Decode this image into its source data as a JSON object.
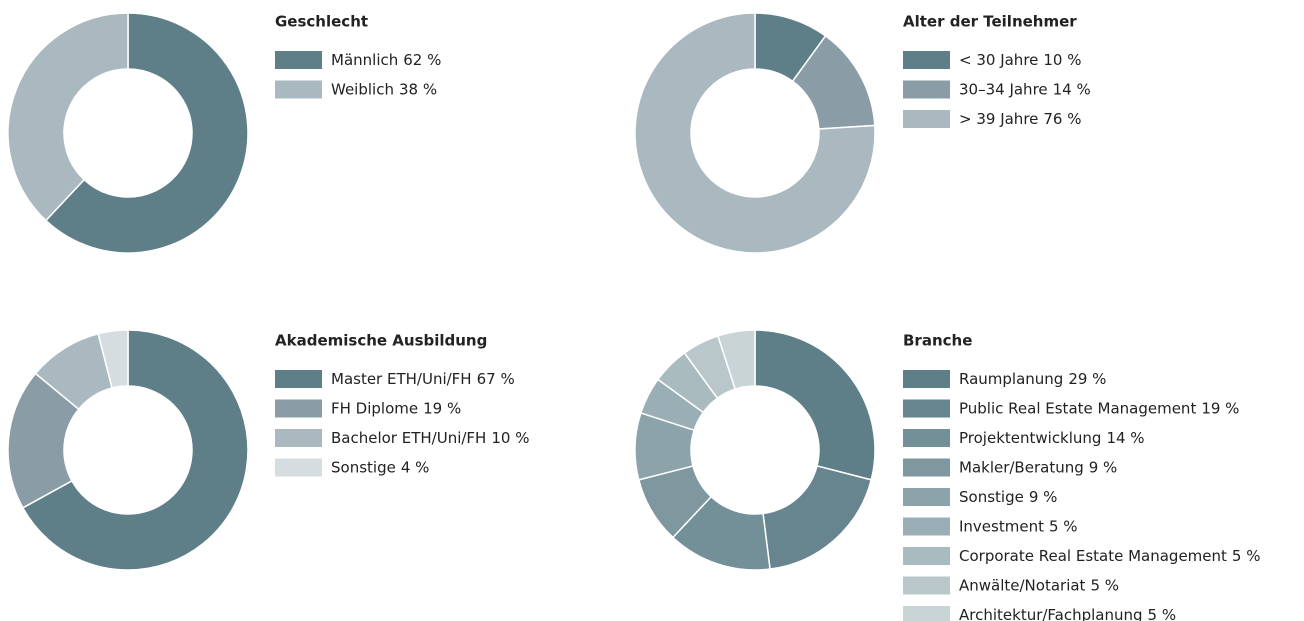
{
  "chart_data": [
    {
      "type": "pie",
      "donut": true,
      "title": "Geschlecht",
      "categories": [
        "Männlich",
        "Weiblich"
      ],
      "values": [
        62,
        38
      ],
      "value_labels": [
        "62 %",
        "38 %"
      ],
      "colors": [
        "#5f7f88",
        "#aab8bf"
      ]
    },
    {
      "type": "pie",
      "donut": true,
      "title": "Alter der Teilnehmer",
      "categories": [
        "< 30 Jahre",
        "30–34 Jahre",
        "> 39 Jahre"
      ],
      "values": [
        10,
        14,
        76
      ],
      "value_labels": [
        "10 %",
        "14 %",
        "76 %"
      ],
      "colors": [
        "#5f7f88",
        "#8a9ca5",
        "#aab8bf"
      ]
    },
    {
      "type": "pie",
      "donut": true,
      "title": "Akademische Ausbildung",
      "categories": [
        "Master ETH/Uni/FH",
        "FH Diplome",
        "Bachelor ETH/Uni/FH",
        "Sonstige"
      ],
      "values": [
        67,
        19,
        10,
        4
      ],
      "value_labels": [
        "67 %",
        "19 %",
        "10 %",
        "4 %"
      ],
      "colors": [
        "#5f7f88",
        "#8a9ca5",
        "#aab8bf",
        "#d5dde0"
      ]
    },
    {
      "type": "pie",
      "donut": true,
      "title": "Branche",
      "categories": [
        "Raumplanung",
        "Public Real Estate Management",
        "Projektentwicklung",
        "Makler/Beratung",
        "Sonstige",
        "Investment",
        "Corporate Real Estate Management",
        "Anwälte/Notariat",
        "Architektur/Fachplanung"
      ],
      "values": [
        29,
        19,
        14,
        9,
        9,
        5,
        5,
        5,
        5
      ],
      "value_labels": [
        "29 %",
        "19 %",
        "14 %",
        "9 %",
        "9 %",
        "5 %",
        "5 %",
        "5 %",
        "5 %"
      ],
      "colors": [
        "#5f7f88",
        "#67858e",
        "#738f97",
        "#7f98a0",
        "#8ca3aa",
        "#9aafb5",
        "#aabbc0",
        "#b9c7cb",
        "#c9d4d7"
      ]
    }
  ]
}
